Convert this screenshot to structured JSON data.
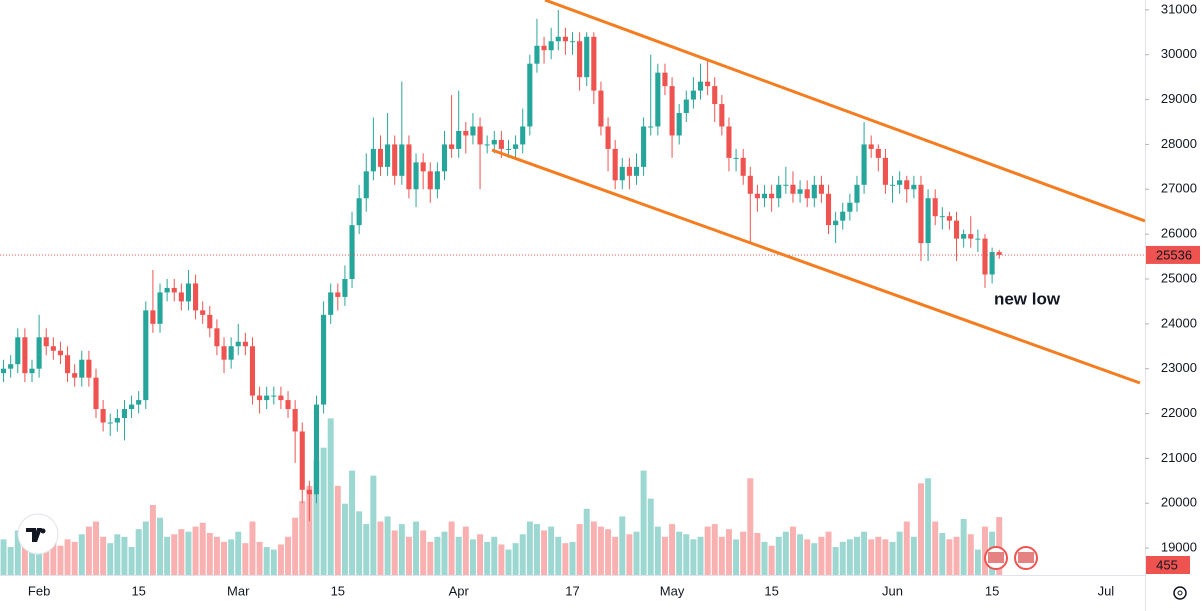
{
  "chart_data": {
    "type": "candlestick",
    "annotation": "new low",
    "up_color": "#26a69a",
    "down_color": "#ef5350",
    "trend_color": "#f57c1f",
    "label_color": "#2196f3",
    "grid": false,
    "ylim": [
      18400,
      31220
    ],
    "yticks": [
      19000,
      20000,
      21000,
      22000,
      23000,
      24000,
      25000,
      26000,
      27000,
      28000,
      29000,
      30000,
      31000
    ],
    "y2lim": [
      0,
      1500
    ],
    "categories": [
      null,
      null,
      null,
      null,
      null,
      "Feb",
      null,
      null,
      null,
      null,
      null,
      null,
      null,
      null,
      null,
      null,
      null,
      null,
      null,
      "15",
      null,
      null,
      null,
      null,
      null,
      null,
      null,
      null,
      null,
      null,
      null,
      null,
      null,
      "Mar",
      null,
      null,
      null,
      null,
      null,
      null,
      null,
      null,
      null,
      null,
      null,
      null,
      null,
      "15",
      null,
      null,
      null,
      null,
      null,
      null,
      null,
      null,
      null,
      null,
      null,
      null,
      null,
      null,
      null,
      null,
      "Apr",
      null,
      null,
      null,
      null,
      null,
      null,
      null,
      null,
      null,
      null,
      null,
      null,
      null,
      null,
      null,
      "17",
      null,
      null,
      null,
      null,
      null,
      null,
      null,
      null,
      null,
      null,
      null,
      null,
      null,
      "May",
      null,
      null,
      null,
      null,
      null,
      null,
      null,
      null,
      null,
      null,
      null,
      null,
      null,
      "15",
      null,
      null,
      null,
      null,
      null,
      null,
      null,
      null,
      null,
      null,
      null,
      null,
      null,
      null,
      null,
      null,
      "Jun",
      null,
      null,
      null,
      null,
      null,
      null,
      null,
      null,
      null,
      null,
      null,
      null,
      null,
      "15",
      null,
      null,
      null,
      null,
      null,
      null,
      null,
      null,
      null,
      null,
      null,
      null,
      null,
      null,
      null,
      "Jul",
      null,
      null,
      null,
      null,
      null
    ],
    "ohlc": [
      [
        22900,
        23200,
        22700,
        23000
      ],
      [
        23000,
        23300,
        22800,
        23100
      ],
      [
        23100,
        23900,
        22900,
        23700
      ],
      [
        23700,
        23900,
        22700,
        22900
      ],
      [
        22900,
        23200,
        22700,
        23000
      ],
      [
        23000,
        24200,
        22800,
        23700
      ],
      [
        23700,
        23900,
        23300,
        23500
      ],
      [
        23500,
        23700,
        23200,
        23400
      ],
      [
        23400,
        23600,
        23100,
        23300
      ],
      [
        23300,
        23500,
        22700,
        22900
      ],
      [
        22900,
        23100,
        22600,
        22800
      ],
      [
        22800,
        23400,
        22600,
        23200
      ],
      [
        23200,
        23400,
        22600,
        22800
      ],
      [
        22800,
        23000,
        21900,
        22100
      ],
      [
        22100,
        22300,
        21600,
        21800
      ],
      [
        21800,
        22000,
        21500,
        21800
      ],
      [
        21800,
        22100,
        21600,
        21900
      ],
      [
        21900,
        22300,
        21400,
        22100
      ],
      [
        22100,
        22400,
        21900,
        22200
      ],
      [
        22200,
        22500,
        22000,
        22300
      ],
      [
        22300,
        24500,
        22100,
        24300
      ],
      [
        24300,
        25200,
        23800,
        24000
      ],
      [
        24000,
        24900,
        23800,
        24700
      ],
      [
        24700,
        25000,
        24500,
        24800
      ],
      [
        24800,
        25000,
        24500,
        24700
      ],
      [
        24700,
        24900,
        24300,
        24500
      ],
      [
        24500,
        25200,
        24300,
        24900
      ],
      [
        24900,
        25100,
        24100,
        24300
      ],
      [
        24300,
        24500,
        24000,
        24200
      ],
      [
        24200,
        24400,
        23700,
        23900
      ],
      [
        23900,
        24100,
        23300,
        23500
      ],
      [
        23500,
        23700,
        22900,
        23200
      ],
      [
        23200,
        23700,
        23000,
        23500
      ],
      [
        23500,
        24000,
        23300,
        23600
      ],
      [
        23600,
        23800,
        23300,
        23500
      ],
      [
        23500,
        23700,
        22200,
        22400
      ],
      [
        22400,
        22600,
        22000,
        22300
      ],
      [
        22300,
        22600,
        22100,
        22400
      ],
      [
        22400,
        22600,
        22200,
        22400
      ],
      [
        22400,
        22600,
        22100,
        22300
      ],
      [
        22300,
        22500,
        21900,
        22100
      ],
      [
        22100,
        22300,
        20900,
        21600
      ],
      [
        21600,
        21800,
        20000,
        20300
      ],
      [
        20300,
        20500,
        19600,
        20200
      ],
      [
        20200,
        22400,
        20000,
        22200
      ],
      [
        22200,
        24500,
        22000,
        24200
      ],
      [
        24200,
        24900,
        24000,
        24700
      ],
      [
        24700,
        24900,
        24300,
        24600
      ],
      [
        24600,
        25300,
        24400,
        25000
      ],
      [
        25000,
        26500,
        24800,
        26200
      ],
      [
        26200,
        27100,
        26000,
        26800
      ],
      [
        26800,
        27800,
        26500,
        27400
      ],
      [
        27400,
        28600,
        27200,
        27900
      ],
      [
        27900,
        28200,
        27300,
        27500
      ],
      [
        27500,
        28700,
        27300,
        28000
      ],
      [
        28000,
        28200,
        27100,
        27300
      ],
      [
        27300,
        29400,
        27100,
        28000
      ],
      [
        28000,
        28200,
        26800,
        27000
      ],
      [
        27000,
        27800,
        26600,
        27600
      ],
      [
        27600,
        27800,
        27000,
        27400
      ],
      [
        27400,
        27600,
        26700,
        27000
      ],
      [
        27000,
        27600,
        26800,
        27400
      ],
      [
        27400,
        28300,
        27200,
        28000
      ],
      [
        28000,
        29100,
        27700,
        27900
      ],
      [
        27900,
        29200,
        27700,
        28300
      ],
      [
        28300,
        28500,
        27800,
        28200
      ],
      [
        28200,
        28700,
        28000,
        28400
      ],
      [
        28400,
        28600,
        27000,
        28000
      ],
      [
        28000,
        28200,
        27800,
        28000
      ],
      [
        28000,
        28300,
        27800,
        28100
      ],
      [
        28100,
        28300,
        27700,
        27900
      ],
      [
        27900,
        28100,
        27700,
        27900
      ],
      [
        27900,
        28200,
        27700,
        28000
      ],
      [
        28000,
        28800,
        27800,
        28400
      ],
      [
        28400,
        30000,
        28200,
        29800
      ],
      [
        29800,
        30800,
        29600,
        30200
      ],
      [
        30200,
        30400,
        29800,
        30100
      ],
      [
        30100,
        30600,
        29900,
        30300
      ],
      [
        30300,
        31000,
        30100,
        30400
      ],
      [
        30400,
        30600,
        30000,
        30300
      ],
      [
        30300,
        30500,
        30000,
        30300
      ],
      [
        30300,
        30500,
        29200,
        29500
      ],
      [
        29500,
        30500,
        29300,
        30400
      ],
      [
        30400,
        30500,
        28900,
        29200
      ],
      [
        29200,
        29400,
        28200,
        28400
      ],
      [
        28400,
        28600,
        27400,
        27900
      ],
      [
        27900,
        28100,
        27000,
        27200
      ],
      [
        27200,
        27700,
        27000,
        27500
      ],
      [
        27500,
        27700,
        27000,
        27300
      ],
      [
        27300,
        27800,
        27100,
        27500
      ],
      [
        27500,
        28600,
        27300,
        28400
      ],
      [
        28400,
        30000,
        28200,
        28400
      ],
      [
        28400,
        29800,
        28200,
        29600
      ],
      [
        29600,
        29800,
        29100,
        29300
      ],
      [
        29300,
        29500,
        27700,
        28200
      ],
      [
        28200,
        28900,
        28000,
        28700
      ],
      [
        28700,
        29200,
        28500,
        29000
      ],
      [
        29000,
        29500,
        28800,
        29200
      ],
      [
        29200,
        29800,
        29000,
        29400
      ],
      [
        29400,
        29900,
        29100,
        29300
      ],
      [
        29300,
        29500,
        28500,
        28900
      ],
      [
        28900,
        29100,
        28200,
        28400
      ],
      [
        28400,
        28600,
        27400,
        27700
      ],
      [
        27700,
        27900,
        27400,
        27700
      ],
      [
        27700,
        27900,
        27100,
        27300
      ],
      [
        27300,
        27500,
        25800,
        26900
      ],
      [
        26900,
        27100,
        26500,
        26800
      ],
      [
        26800,
        27100,
        26600,
        26900
      ],
      [
        26900,
        27100,
        26500,
        26800
      ],
      [
        26800,
        27300,
        26600,
        27100
      ],
      [
        27100,
        27500,
        26900,
        27100
      ],
      [
        27100,
        27400,
        26700,
        26900
      ],
      [
        26900,
        27200,
        26700,
        27000
      ],
      [
        27000,
        27200,
        26600,
        26800
      ],
      [
        26800,
        27300,
        26600,
        27100
      ],
      [
        27100,
        27300,
        26700,
        26900
      ],
      [
        26900,
        27100,
        26000,
        26200
      ],
      [
        26200,
        26500,
        25800,
        26300
      ],
      [
        26300,
        26700,
        26100,
        26500
      ],
      [
        26500,
        26900,
        26300,
        26700
      ],
      [
        26700,
        27300,
        26500,
        27100
      ],
      [
        27100,
        28500,
        26900,
        28000
      ],
      [
        28000,
        28200,
        27700,
        27900
      ],
      [
        27900,
        28000,
        27400,
        27700
      ],
      [
        27700,
        27900,
        26900,
        27100
      ],
      [
        27100,
        27300,
        26700,
        27100
      ],
      [
        27100,
        27400,
        26900,
        27200
      ],
      [
        27200,
        27300,
        26700,
        27000
      ],
      [
        27000,
        27300,
        26800,
        27100
      ],
      [
        27100,
        27300,
        25400,
        25800
      ],
      [
        25800,
        27000,
        25400,
        26800
      ],
      [
        26800,
        27000,
        26200,
        26400
      ],
      [
        26400,
        26600,
        26100,
        26400
      ],
      [
        26400,
        26500,
        26100,
        26300
      ],
      [
        26300,
        26500,
        25400,
        25900
      ],
      [
        25900,
        26100,
        25700,
        26000
      ],
      [
        26000,
        26400,
        25700,
        25900
      ],
      [
        25900,
        26100,
        25600,
        25900
      ],
      [
        25900,
        26000,
        24800,
        25100
      ],
      [
        25100,
        25700,
        24900,
        25600
      ],
      [
        25600,
        25650,
        25450,
        25536
      ],
      null,
      null,
      null,
      null,
      null,
      null,
      null,
      null,
      null,
      null,
      null,
      null,
      null,
      null,
      null,
      null,
      null,
      null,
      null,
      null
    ],
    "volume": [
      280,
      220,
      350,
      300,
      260,
      200,
      300,
      250,
      230,
      280,
      260,
      320,
      380,
      420,
      300,
      250,
      320,
      300,
      220,
      360,
      420,
      550,
      450,
      300,
      320,
      360,
      340,
      380,
      410,
      330,
      300,
      260,
      280,
      340,
      250,
      420,
      260,
      220,
      200,
      240,
      300,
      450,
      580,
      700,
      900,
      1000,
      1230,
      700,
      560,
      820,
      500,
      400,
      780,
      420,
      460,
      350,
      400,
      300,
      420,
      350,
      260,
      300,
      340,
      420,
      300,
      380,
      280,
      320,
      260,
      300,
      240,
      200,
      250,
      320,
      420,
      400,
      350,
      380,
      300,
      250,
      260,
      400,
      520,
      420,
      380,
      360,
      300,
      460,
      320,
      340,
      820,
      600,
      380,
      300,
      400,
      340,
      320,
      280,
      300,
      380,
      400,
      300,
      360,
      280,
      340,
      760,
      330,
      260,
      230,
      300,
      340,
      380,
      320,
      280,
      250,
      300,
      340,
      220,
      260,
      280,
      300,
      340,
      280,
      300,
      280,
      260,
      340,
      420,
      300,
      720,
      760,
      420,
      330,
      280,
      300,
      440,
      320,
      200,
      380,
      340,
      455,
      null,
      null,
      null,
      null,
      null,
      null,
      null,
      null,
      null,
      null,
      null,
      null,
      null,
      null,
      null,
      null,
      null,
      null,
      null,
      null
    ]
  }
}
